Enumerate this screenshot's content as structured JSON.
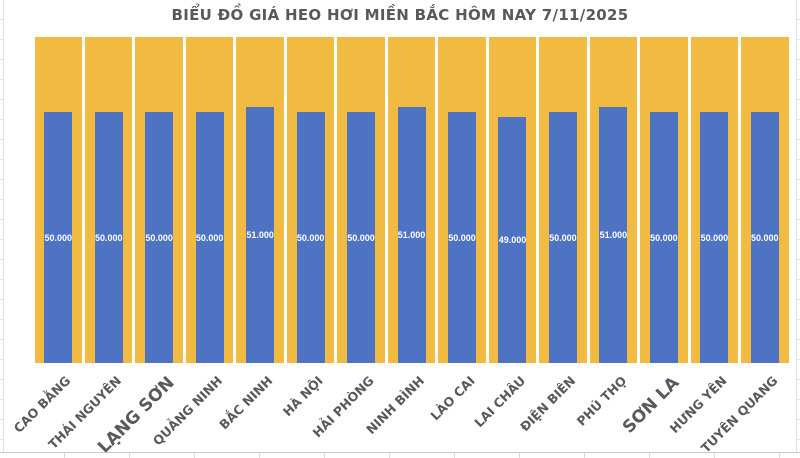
{
  "chart_data": {
    "type": "bar",
    "title": "BIỂU ĐỒ GIÁ HEO HƠI MIỀN BẮC HÔM NAY 7/11/2025",
    "categories": [
      "CAO BẰNG",
      "THÁI NGUYÊN",
      "LẠNG SƠN",
      "QUẢNG NINH",
      "BẮC NINH",
      "HÀ NỘI",
      "HẢI PHÒNG",
      "NINH BÌNH",
      "LÀO CAI",
      "LAI CHÂU",
      "ĐIỆN BIÊN",
      "PHÚ THỌ",
      "SƠN LA",
      "HƯNG YÊN",
      "TUYÊN QUANG"
    ],
    "values": [
      50000,
      50000,
      50000,
      50000,
      51000,
      50000,
      50000,
      51000,
      50000,
      49000,
      50000,
      51000,
      50000,
      50000,
      50000
    ],
    "value_labels": [
      "50.000",
      "50.000",
      "50.000",
      "50.000",
      "51.000",
      "50.000",
      "50.000",
      "51.000",
      "50.000",
      "49.000",
      "50.000",
      "51.000",
      "50.000",
      "50.000",
      "50.000"
    ],
    "ylim": [
      0,
      65000
    ],
    "xlabel": "",
    "ylabel": "",
    "legend": "none",
    "grid": "off",
    "value_label_position": "center",
    "x_label_rotation_deg": 45,
    "large_label_categories": [
      "LẠNG SƠN",
      "SƠN LA"
    ],
    "colors": {
      "bar": "#4E73C3",
      "filler_column": "#F1BA41",
      "title_text": "#595959",
      "axis_text": "#595959",
      "value_label_text": "#FFFFFF"
    }
  }
}
